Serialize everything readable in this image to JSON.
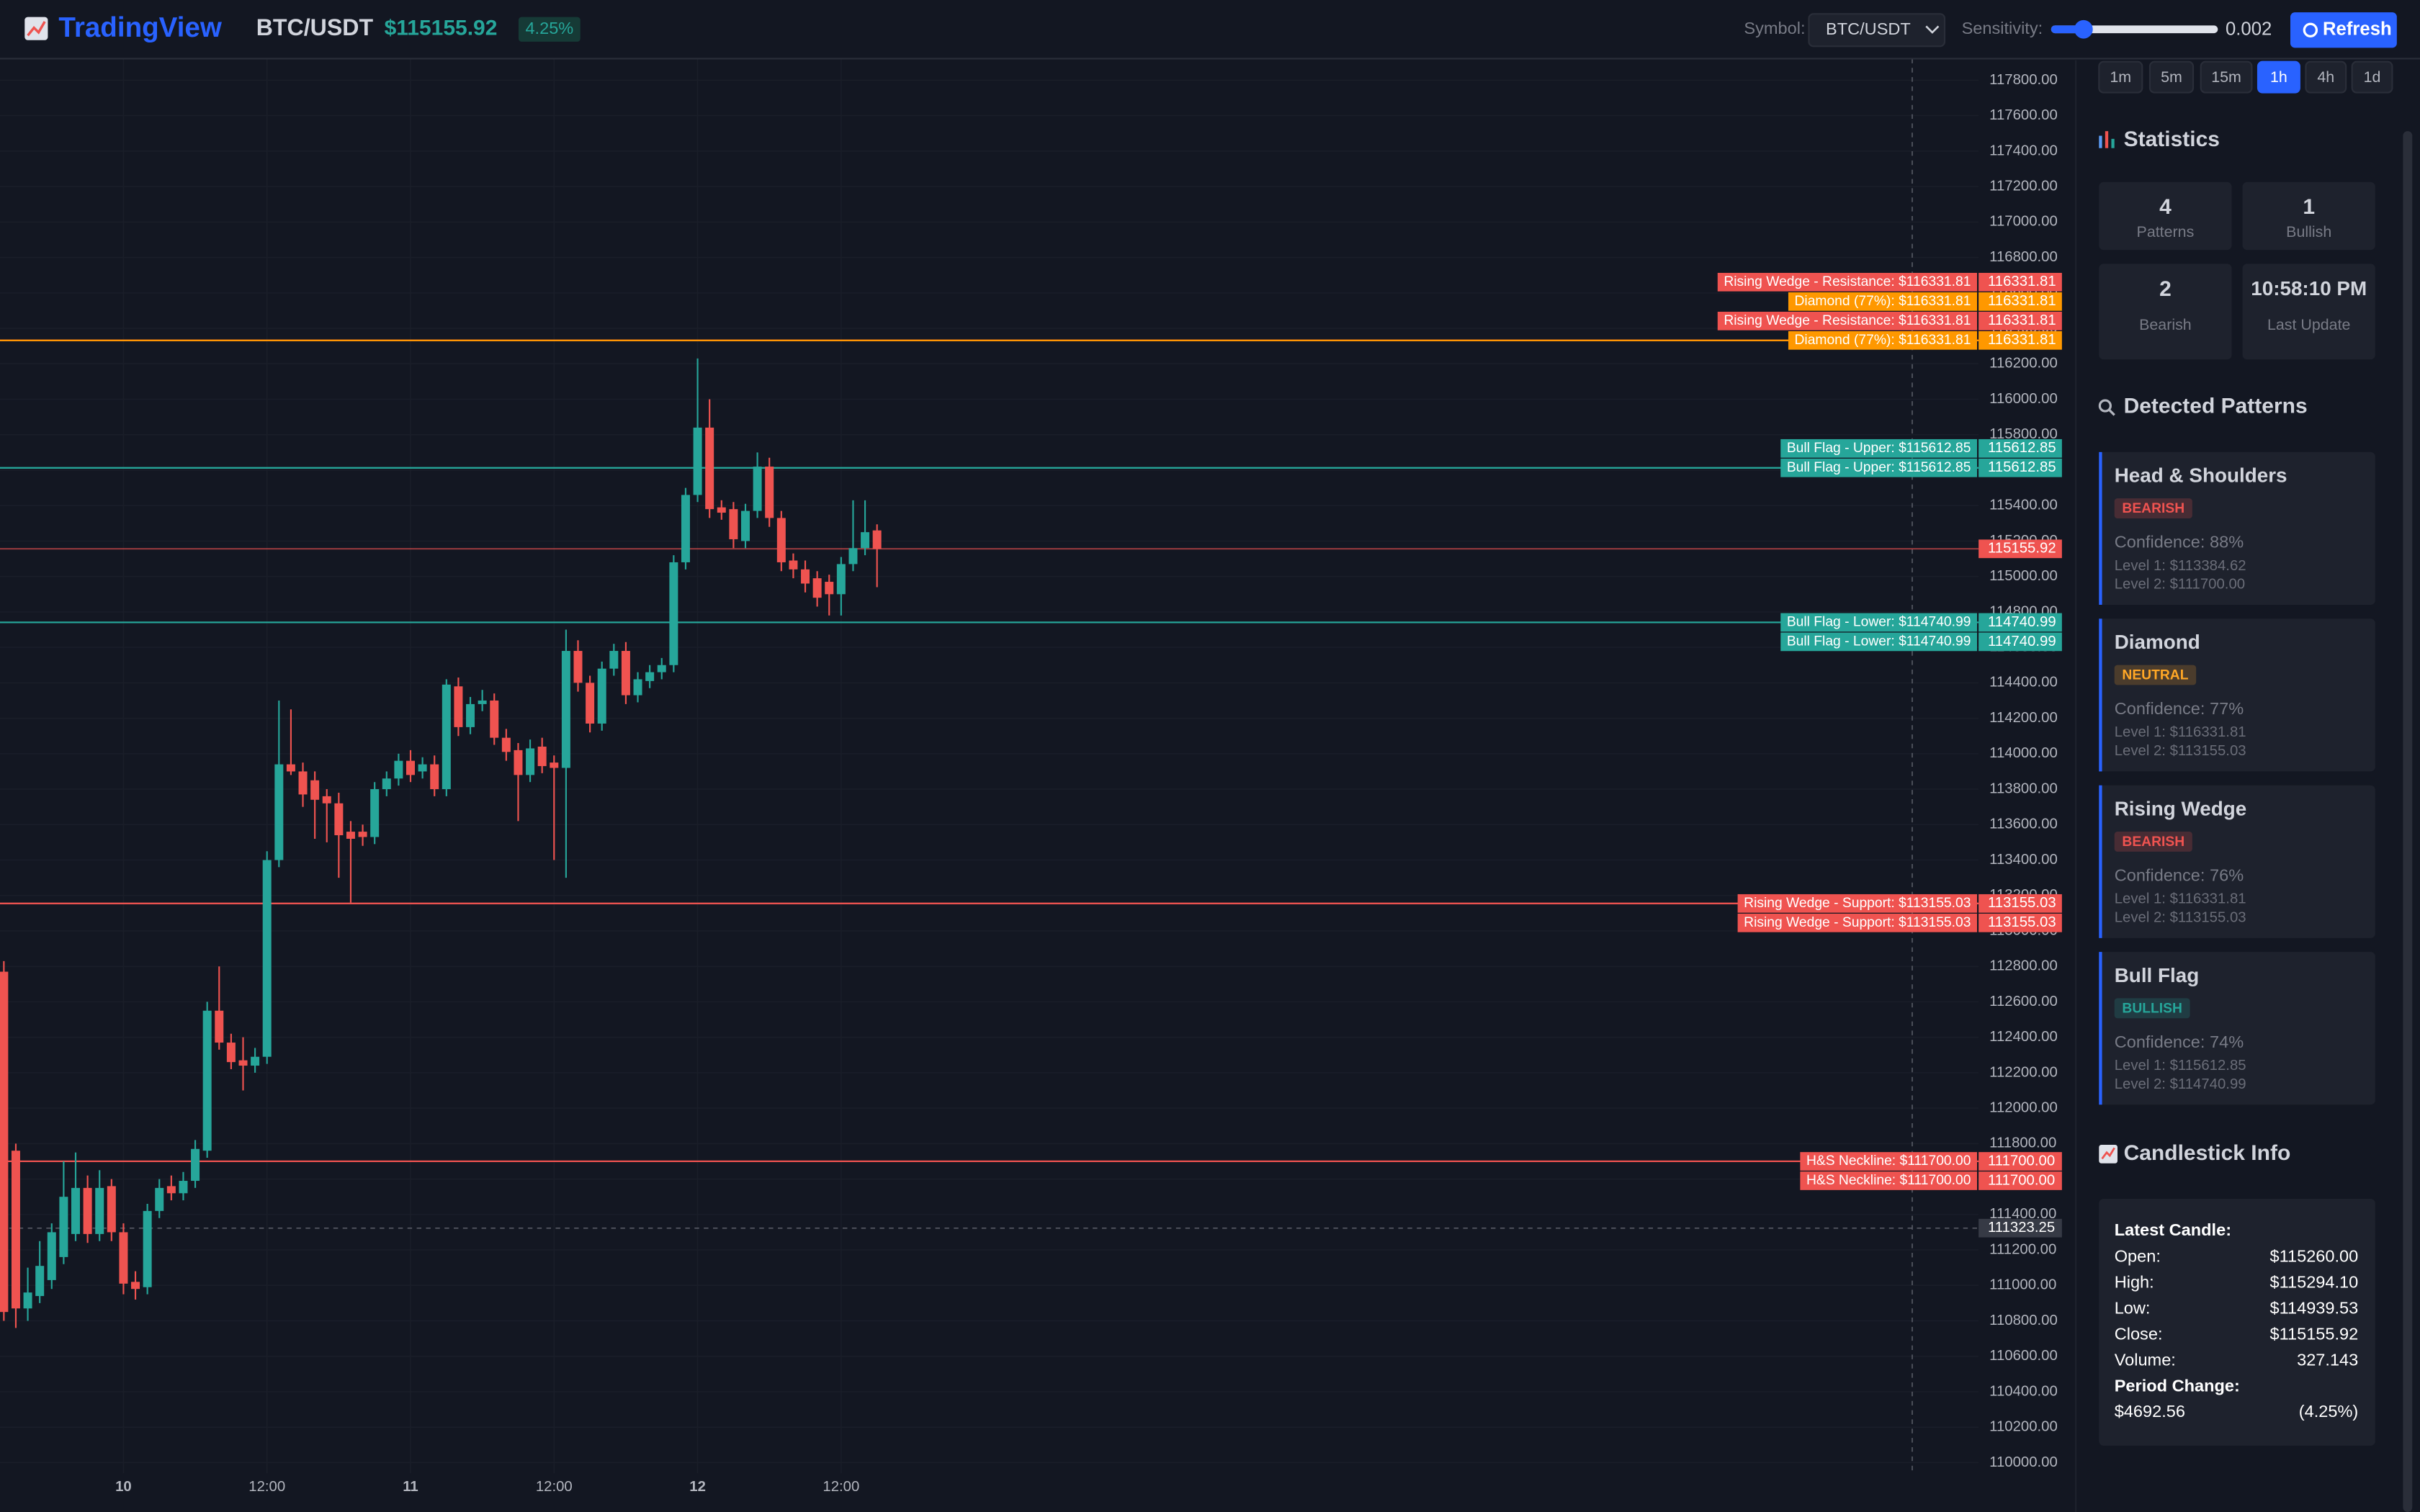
{
  "header": {
    "logo": "TradingView",
    "symbol": "BTC/USDT",
    "price": "$115155.92",
    "change": "4.25%",
    "symbol_label": "Symbol:",
    "symbol_select": "BTC/USDT",
    "sensitivity_label": "Sensitivity:",
    "sensitivity_value": "0.002",
    "refresh": "Refresh"
  },
  "chart_data": {
    "type": "candlestick",
    "categories": [
      null,
      null,
      null,
      null,
      null,
      null,
      null,
      null,
      null,
      null,
      "10",
      null,
      null,
      null,
      null,
      null,
      null,
      null,
      null,
      null,
      null,
      null,
      "12:00",
      null,
      null,
      null,
      null,
      null,
      null,
      null,
      null,
      null,
      null,
      null,
      "11",
      null,
      null,
      null,
      null,
      null,
      null,
      null,
      null,
      null,
      null,
      null,
      "12:00",
      null,
      null,
      null,
      null,
      null,
      null,
      null,
      null,
      null,
      null,
      null,
      "12",
      null,
      null,
      null,
      null,
      null,
      null,
      null,
      null,
      null,
      null,
      null,
      "12:00",
      null,
      null,
      null
    ],
    "open": [
      112770,
      111760,
      110870,
      110940,
      111030,
      111160,
      111290,
      111550,
      111290,
      111560,
      111300,
      111020,
      110990,
      111420,
      111560,
      111520,
      111590,
      111760,
      112550,
      112370,
      112270,
      112240,
      112290,
      113400,
      113940,
      113900,
      113850,
      113760,
      113720,
      113560,
      113560,
      113530,
      113800,
      113860,
      113960,
      113900,
      113940,
      113800,
      114380,
      114150,
      114280,
      114300,
      114090,
      114020,
      113880,
      114040,
      113950,
      113920,
      114580,
      114400,
      114170,
      114480,
      114580,
      114330,
      114410,
      114460,
      114500,
      115080,
      115460,
      115840,
      115390,
      115380,
      115200,
      115370,
      115620,
      115330,
      115090,
      115040,
      114990,
      114970,
      114900,
      115070,
      115160,
      115260
    ],
    "high": [
      112830,
      111800,
      111100,
      111250,
      111350,
      111700,
      111750,
      111620,
      111650,
      111600,
      111350,
      111080,
      111460,
      111600,
      111620,
      111640,
      111820,
      112600,
      112800,
      112420,
      112400,
      112340,
      113450,
      114300,
      114250,
      113950,
      113900,
      113800,
      113780,
      113620,
      113600,
      113840,
      113900,
      114000,
      114020,
      113980,
      113990,
      114420,
      114430,
      114320,
      114360,
      114340,
      114140,
      114060,
      114080,
      114090,
      113990,
      114700,
      114640,
      114440,
      114520,
      114620,
      114630,
      114460,
      114500,
      114540,
      115120,
      115500,
      116230,
      116000,
      115430,
      115420,
      115410,
      115700,
      115670,
      115370,
      115130,
      115090,
      115030,
      115010,
      115110,
      115430,
      115430,
      115294.1
    ],
    "low": [
      110800,
      110760,
      110800,
      110900,
      110980,
      111120,
      111250,
      111240,
      111250,
      111250,
      110950,
      110920,
      110950,
      111380,
      111480,
      111480,
      111550,
      111720,
      112330,
      112220,
      112100,
      112200,
      112250,
      113360,
      113880,
      113700,
      113520,
      113500,
      113300,
      113160,
      113480,
      113490,
      113760,
      113820,
      113840,
      113860,
      113760,
      113760,
      114100,
      114110,
      114240,
      114050,
      113960,
      113620,
      113840,
      113890,
      113400,
      113300,
      114350,
      114120,
      114130,
      114440,
      114280,
      114290,
      114370,
      114420,
      114460,
      115040,
      115420,
      115330,
      115320,
      115160,
      115160,
      115330,
      115280,
      115030,
      114990,
      114910,
      114830,
      114780,
      114780,
      115030,
      115120,
      114939.53
    ],
    "close": [
      110850,
      110870,
      110960,
      111110,
      111300,
      111500,
      111550,
      111290,
      111550,
      111300,
      111010,
      110980,
      111420,
      111550,
      111520,
      111590,
      111770,
      112550,
      112370,
      112260,
      112240,
      112290,
      113400,
      113940,
      113900,
      113770,
      113740,
      113720,
      113540,
      113520,
      113530,
      113800,
      113860,
      113960,
      113880,
      113940,
      113800,
      114390,
      114150,
      114280,
      114300,
      114090,
      114010,
      113880,
      114030,
      113930,
      113920,
      114580,
      114400,
      114170,
      114480,
      114580,
      114330,
      114420,
      114460,
      114500,
      115080,
      115460,
      115840,
      115380,
      115360,
      115210,
      115370,
      115620,
      115330,
      115080,
      115040,
      114960,
      114880,
      114900,
      115070,
      115160,
      115250,
      115155.92
    ],
    "up_color": "#26a69a",
    "down_color": "#ef5350",
    "ylim": [
      110000,
      117800
    ],
    "yticks": [
      {
        "value": 110000,
        "label": "110000.00"
      },
      {
        "value": 110200,
        "label": "110200.00"
      },
      {
        "value": 110400,
        "label": "110400.00"
      },
      {
        "value": 110600,
        "label": "110600.00"
      },
      {
        "value": 110800,
        "label": "110800.00"
      },
      {
        "value": 111000,
        "label": "111000.00"
      },
      {
        "value": 111200,
        "label": "111200.00"
      },
      {
        "value": 111400,
        "label": "111400.00"
      },
      {
        "value": 111600,
        "label": "111600.00"
      },
      {
        "value": 111800,
        "label": "111800.00"
      },
      {
        "value": 112000,
        "label": "112000.00"
      },
      {
        "value": 112200,
        "label": "112200.00"
      },
      {
        "value": 112400,
        "label": "112400.00"
      },
      {
        "value": 112600,
        "label": "112600.00"
      },
      {
        "value": 112800,
        "label": "112800.00"
      },
      {
        "value": 113000,
        "label": "113000.00"
      },
      {
        "value": 113200,
        "label": "113200.00"
      },
      {
        "value": 113400,
        "label": "113400.00"
      },
      {
        "value": 113600,
        "label": "113600.00"
      },
      {
        "value": 113800,
        "label": "113800.00"
      },
      {
        "value": 114000,
        "label": "114000.00"
      },
      {
        "value": 114200,
        "label": "114200.00"
      },
      {
        "value": 114400,
        "label": "114400.00"
      },
      {
        "value": 114600,
        "label": "114600.00"
      },
      {
        "value": 114800,
        "label": "114800.00"
      },
      {
        "value": 115000,
        "label": "115000.00"
      },
      {
        "value": 115200,
        "label": "115200.00"
      },
      {
        "value": 115400,
        "label": "115400.00"
      },
      {
        "value": 115600,
        "label": "115600.00"
      },
      {
        "value": 115800,
        "label": "115800.00"
      },
      {
        "value": 116000,
        "label": "116000.00"
      },
      {
        "value": 116200,
        "label": "116200.00"
      },
      {
        "value": 116400,
        "label": "116400.00"
      },
      {
        "value": 116600,
        "label": "116600.00"
      },
      {
        "value": 116800,
        "label": "116800.00"
      },
      {
        "value": 117000,
        "label": "117000.00"
      },
      {
        "value": 117200,
        "label": "117200.00"
      },
      {
        "value": 117400,
        "label": "117400.00"
      },
      {
        "value": 117600,
        "label": "117600.00"
      },
      {
        "value": 117800,
        "label": "117800.00"
      }
    ],
    "grid": true,
    "last_price": 115155.92,
    "crosshair_price": 111323.25,
    "price_lines": [
      {
        "label": "Rising Wedge - Resistance: $116331.81",
        "value": 116331.81,
        "color": "#ef5350"
      },
      {
        "label": "Diamond (77%): $116331.81",
        "value": 116331.81,
        "color": "#ff9800"
      },
      {
        "label": "Rising Wedge - Resistance: $116331.81",
        "value": 116331.81,
        "color": "#ef5350"
      },
      {
        "label": "Diamond (77%): $116331.81",
        "value": 116331.81,
        "color": "#ff9800"
      },
      {
        "label": "Bull Flag - Upper: $115612.85",
        "value": 115612.85,
        "color": "#26a69a"
      },
      {
        "label": "Bull Flag - Upper: $115612.85",
        "value": 115612.85,
        "color": "#26a69a"
      },
      {
        "label": "Bull Flag - Lower: $114740.99",
        "value": 114740.99,
        "color": "#26a69a"
      },
      {
        "label": "Bull Flag - Lower: $114740.99",
        "value": 114740.99,
        "color": "#26a69a"
      },
      {
        "label": "Rising Wedge - Support: $113155.03",
        "value": 113155.03,
        "color": "#ef5350"
      },
      {
        "label": "Rising Wedge - Support: $113155.03",
        "value": 113155.03,
        "color": "#ef5350"
      },
      {
        "label": "H&S Neckline: $111700.00",
        "value": 111700,
        "value_label": "111700.00",
        "color": "#ef5350"
      },
      {
        "label": "H&S Neckline: $111700.00",
        "value": 111700,
        "value_label": "111700.00",
        "color": "#ef5350"
      }
    ]
  },
  "sidebar": {
    "timeframes": [
      "1m",
      "5m",
      "15m",
      "1h",
      "4h",
      "1d"
    ],
    "active_timeframe": "1h",
    "statistics": {
      "title": "Statistics",
      "cards": [
        {
          "value": "4",
          "label": "Patterns"
        },
        {
          "value": "1",
          "label": "Bullish"
        },
        {
          "value": "2",
          "label": "Bearish"
        },
        {
          "value": "10:58:10 PM",
          "label": "Last Update"
        }
      ]
    },
    "patterns": {
      "title": "Detected Patterns",
      "items": [
        {
          "name": "Head & Shoulders",
          "badge": "BEARISH",
          "color": "#ef5350",
          "confidence": "Confidence: 88%",
          "level1": "Level 1: $113384.62",
          "level2": "Level 2: $111700.00"
        },
        {
          "name": "Diamond",
          "badge": "NEUTRAL",
          "color": "#ffa726",
          "confidence": "Confidence: 77%",
          "level1": "Level 1: $116331.81",
          "level2": "Level 2: $113155.03"
        },
        {
          "name": "Rising Wedge",
          "badge": "BEARISH",
          "color": "#ef5350",
          "confidence": "Confidence: 76%",
          "level1": "Level 1: $116331.81",
          "level2": "Level 2: $113155.03"
        },
        {
          "name": "Bull Flag",
          "badge": "BULLISH",
          "color": "#26a69a",
          "confidence": "Confidence: 74%",
          "level1": "Level 1: $115612.85",
          "level2": "Level 2: $114740.99"
        }
      ]
    },
    "candle_info": {
      "title": "Candlestick Info",
      "heading": "Latest Candle:",
      "rows": [
        [
          "Open:",
          "$115260.00"
        ],
        [
          "High:",
          "$115294.10"
        ],
        [
          "Low:",
          "$114939.53"
        ],
        [
          "Close:",
          "$115155.92"
        ],
        [
          "Volume:",
          "327.143"
        ]
      ],
      "period_heading": "Period Change:",
      "period_value": "$4692.56",
      "period_percent": "(4.25%)"
    }
  }
}
